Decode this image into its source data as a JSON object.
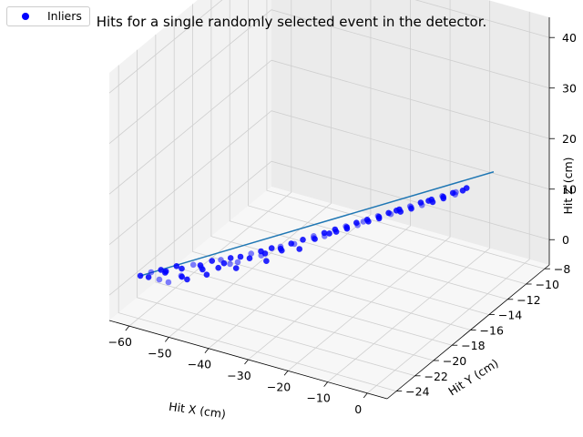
{
  "chart_data": {
    "type": "scatter3d",
    "title": "Hits for a single randomly selected event in the detector.",
    "xlabel": "Hit X (cm)",
    "ylabel": "Hit Y (cm)",
    "zlabel": "Hit Z (cm)",
    "xlim": [
      -65,
      5
    ],
    "ylim": [
      -25,
      -7.5
    ],
    "zlim": [
      -5,
      44
    ],
    "xticks": [
      -60,
      -50,
      -40,
      -30,
      -20,
      -10,
      0
    ],
    "yticks": [
      -24,
      -22,
      -20,
      -18,
      -16,
      -14,
      -12,
      -10,
      -8
    ],
    "zticks": [
      0,
      10,
      20,
      30,
      40
    ],
    "grid": true,
    "legend_position": "top-left",
    "series": [
      {
        "name": "Inliers",
        "kind": "scatter",
        "color": "#0000ff",
        "points": [
          [
            -63,
            -22.5,
            0.5
          ],
          [
            -61,
            -22.2,
            1.2
          ],
          [
            -60,
            -22.9,
            1.5
          ],
          [
            -59,
            -22,
            1.8
          ],
          [
            -58,
            -22.6,
            1.0
          ],
          [
            -57,
            -22.4,
            2.3
          ],
          [
            -56,
            -21.6,
            2.6
          ],
          [
            -55,
            -22.9,
            1.6
          ],
          [
            -54,
            -21.9,
            3.0
          ],
          [
            -53,
            -22.3,
            2.2
          ],
          [
            -52,
            -21.5,
            3.6
          ],
          [
            -51,
            -22.6,
            2.6
          ],
          [
            -50,
            -21.6,
            4.1
          ],
          [
            -49,
            -21.9,
            4.3
          ],
          [
            -48,
            -21.2,
            4.8
          ],
          [
            -47,
            -22.2,
            3.8
          ],
          [
            -46,
            -21.1,
            5.3
          ],
          [
            -45,
            -21.8,
            5.0
          ],
          [
            -44,
            -20.9,
            5.8
          ],
          [
            -43,
            -21.4,
            5.6
          ],
          [
            -42,
            -20.7,
            6.2
          ],
          [
            -41,
            -21.6,
            5.5
          ],
          [
            -40,
            -20.4,
            6.8
          ],
          [
            -39,
            -21.0,
            7.0
          ],
          [
            -38,
            -20.2,
            7.4
          ],
          [
            -37,
            -20.6,
            7.4
          ],
          [
            -36,
            -19.9,
            8.0
          ],
          [
            -35,
            -20.9,
            7.2
          ],
          [
            -34,
            -19.8,
            8.6
          ],
          [
            -33,
            -20.1,
            8.5
          ],
          [
            -32,
            -19.5,
            9.2
          ],
          [
            -31,
            -19.6,
            9.5
          ],
          [
            -30,
            -19.1,
            9.8
          ],
          [
            -29,
            -19.9,
            9.4
          ],
          [
            -28,
            -18.8,
            10.5
          ],
          [
            -27,
            -19.1,
            10.6
          ],
          [
            -26,
            -18.5,
            11.1
          ],
          [
            -25,
            -18.9,
            11.3
          ],
          [
            -24,
            -18.2,
            11.8
          ],
          [
            -23,
            -18.5,
            12.0
          ],
          [
            -22,
            -17.9,
            12.4
          ],
          [
            -21,
            -18.2,
            12.6
          ],
          [
            -20,
            -17.6,
            13.1
          ],
          [
            -19,
            -17.9,
            13.3
          ],
          [
            -18,
            -17.3,
            13.7
          ],
          [
            -17,
            -17.6,
            14.0
          ],
          [
            -16,
            -17.0,
            14.4
          ],
          [
            -15,
            -17.3,
            14.6
          ],
          [
            -14,
            -16.7,
            15.0
          ],
          [
            -13,
            -16.9,
            15.3
          ],
          [
            -12,
            -16.4,
            15.7
          ],
          [
            -11,
            -16.7,
            15.9
          ],
          [
            -10,
            -16.1,
            16.3
          ],
          [
            -9,
            -16.4,
            16.5
          ],
          [
            -8,
            -15.8,
            17.0
          ],
          [
            -7,
            -16.1,
            17.2
          ],
          [
            -6,
            -15.5,
            17.6
          ],
          [
            -5,
            -15.8,
            17.8
          ],
          [
            -4,
            -15.2,
            18.3
          ],
          [
            -3,
            -15.5,
            18.5
          ],
          [
            -2,
            -14.9,
            18.9
          ],
          [
            -1,
            -15.1,
            19.1
          ],
          [
            0,
            -14.7,
            19.5
          ],
          [
            0.5,
            -14.5,
            19.8
          ],
          [
            -1.5,
            -14.8,
            19.0
          ],
          [
            -3.5,
            -15.3,
            18.4
          ],
          [
            -6.5,
            -15.6,
            17.4
          ],
          [
            -9.5,
            -16.2,
            16.4
          ],
          [
            -12.5,
            -16.5,
            15.5
          ],
          [
            -15.5,
            -17.1,
            14.5
          ],
          [
            -18.5,
            -17.5,
            13.5
          ],
          [
            -21.5,
            -18.0,
            12.5
          ],
          [
            -24.5,
            -18.6,
            11.5
          ],
          [
            -27.5,
            -19.0,
            10.5
          ],
          [
            -33.5,
            -20.0,
            8.6
          ],
          [
            -36.5,
            -20.4,
            7.6
          ],
          [
            -41.5,
            -21.2,
            6.0
          ],
          [
            -44.5,
            -21.4,
            5.4
          ],
          [
            -48.5,
            -22.0,
            4.2
          ],
          [
            -52.5,
            -22.6,
            3.0
          ],
          [
            -57.5,
            -22.1,
            2.0
          ]
        ]
      },
      {
        "kind": "line",
        "color": "#1f77b4",
        "from": [
          -63,
          -22.5,
          0.5
        ],
        "to": [
          5,
          -13.5,
          22.5
        ]
      }
    ]
  }
}
